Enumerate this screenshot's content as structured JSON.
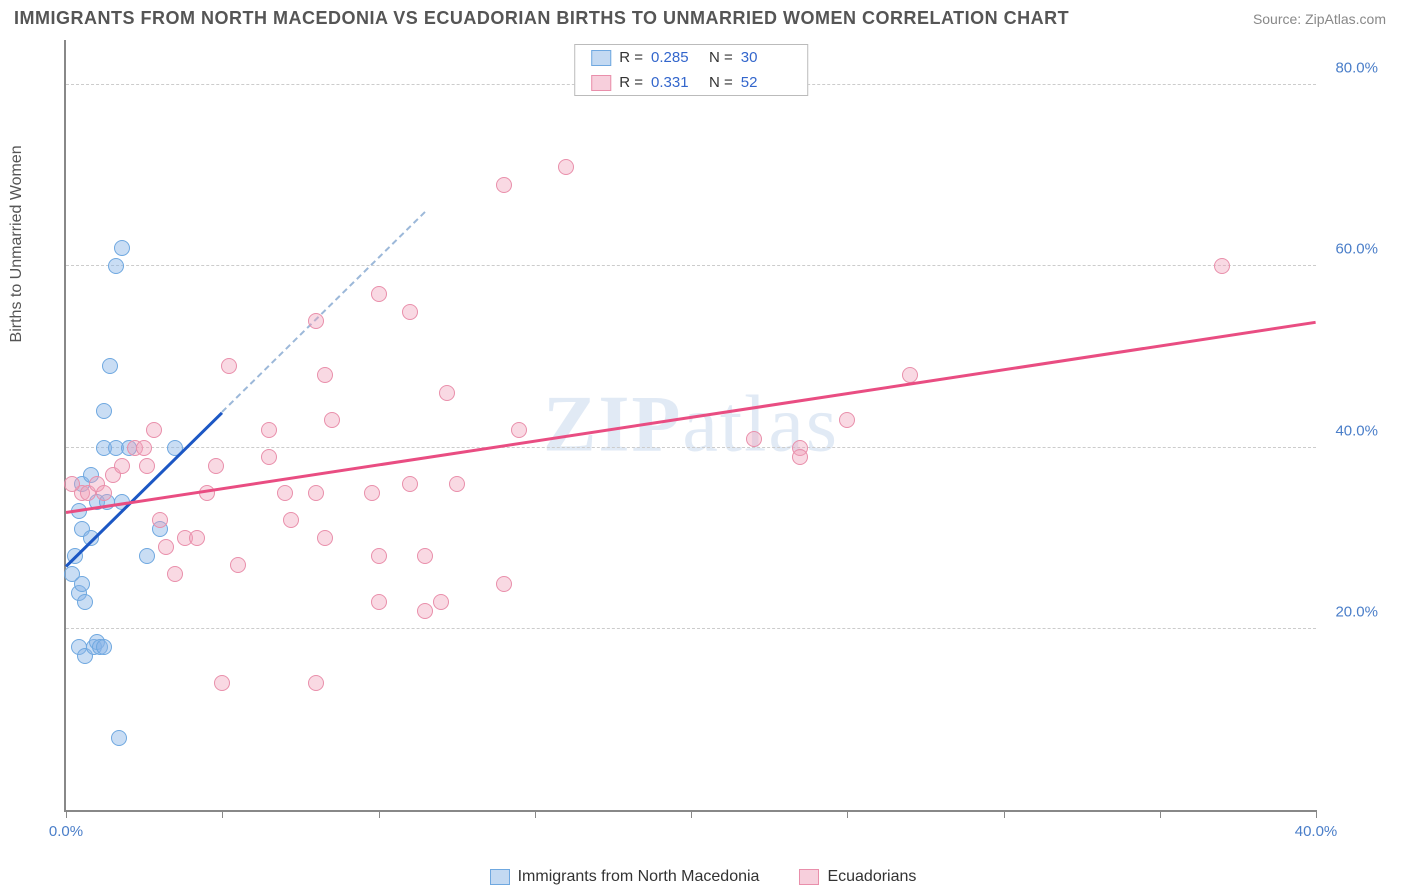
{
  "title": "IMMIGRANTS FROM NORTH MACEDONIA VS ECUADORIAN BIRTHS TO UNMARRIED WOMEN CORRELATION CHART",
  "source": "Source: ZipAtlas.com",
  "watermark": "ZIPatlas",
  "chart": {
    "type": "scatter",
    "ylabel": "Births to Unmarried Women",
    "xlim": [
      0,
      40
    ],
    "ylim": [
      0,
      85
    ],
    "xticks": [
      0,
      5,
      10,
      15,
      20,
      25,
      30,
      35,
      40
    ],
    "xtick_labels": {
      "0": "0.0%",
      "40": "40.0%"
    },
    "yticks": [
      20,
      40,
      60,
      80
    ],
    "ytick_labels": {
      "20": "20.0%",
      "40": "40.0%",
      "60": "60.0%",
      "80": "80.0%"
    },
    "grid_color": "#cccccc",
    "background_color": "#ffffff",
    "marker_radius": 8,
    "series": [
      {
        "key": "a",
        "label": "Immigrants from North Macedonia",
        "color_fill": "rgba(135,180,230,0.45)",
        "color_stroke": "#6fa8e0",
        "r": "0.285",
        "n": "30",
        "trend": {
          "x1": 0,
          "y1": 27,
          "x2": 5,
          "y2": 44,
          "color": "#1c57c4",
          "dash_extend_to_x": 11.5
        },
        "points": [
          [
            0.2,
            26
          ],
          [
            0.3,
            28
          ],
          [
            0.4,
            24
          ],
          [
            0.5,
            25
          ],
          [
            0.6,
            23
          ],
          [
            0.4,
            18
          ],
          [
            0.6,
            17
          ],
          [
            0.9,
            18
          ],
          [
            1.0,
            18.5
          ],
          [
            1.1,
            18
          ],
          [
            1.2,
            18
          ],
          [
            0.5,
            31
          ],
          [
            0.8,
            30
          ],
          [
            1.0,
            34
          ],
          [
            1.3,
            34
          ],
          [
            1.8,
            34
          ],
          [
            0.5,
            36
          ],
          [
            0.8,
            37
          ],
          [
            1.2,
            40
          ],
          [
            1.6,
            40
          ],
          [
            2.0,
            40
          ],
          [
            3.5,
            40
          ],
          [
            3.0,
            31
          ],
          [
            1.2,
            44
          ],
          [
            1.4,
            49
          ],
          [
            1.6,
            60
          ],
          [
            1.8,
            62
          ],
          [
            0.4,
            33
          ],
          [
            2.6,
            28
          ],
          [
            1.7,
            8
          ]
        ]
      },
      {
        "key": "b",
        "label": "Ecuadorians",
        "color_fill": "rgba(240,160,185,0.4)",
        "color_stroke": "#e98fab",
        "r": "0.331",
        "n": "52",
        "trend": {
          "x1": 0,
          "y1": 33,
          "x2": 40,
          "y2": 54,
          "color": "#e94d82"
        },
        "points": [
          [
            0.5,
            35
          ],
          [
            0.7,
            35
          ],
          [
            1.0,
            36
          ],
          [
            1.2,
            35
          ],
          [
            1.5,
            37
          ],
          [
            1.8,
            38
          ],
          [
            2.2,
            40
          ],
          [
            2.5,
            40
          ],
          [
            2.6,
            38
          ],
          [
            2.8,
            42
          ],
          [
            3.0,
            32
          ],
          [
            3.2,
            29
          ],
          [
            3.5,
            26
          ],
          [
            3.8,
            30
          ],
          [
            4.2,
            30
          ],
          [
            4.5,
            35
          ],
          [
            4.8,
            38
          ],
          [
            5.2,
            49
          ],
          [
            6.5,
            42
          ],
          [
            6.5,
            39
          ],
          [
            7.0,
            35
          ],
          [
            7.2,
            32
          ],
          [
            8.0,
            35
          ],
          [
            8.3,
            48
          ],
          [
            8.0,
            54
          ],
          [
            8.3,
            30
          ],
          [
            8.5,
            43
          ],
          [
            5.5,
            27
          ],
          [
            5.0,
            14
          ],
          [
            8.0,
            14
          ],
          [
            9.8,
            35
          ],
          [
            10,
            28
          ],
          [
            10,
            23
          ],
          [
            11,
            55
          ],
          [
            11,
            36
          ],
          [
            11.5,
            22
          ],
          [
            11.5,
            28
          ],
          [
            12.5,
            36
          ],
          [
            10,
            57
          ],
          [
            12,
            23
          ],
          [
            12.2,
            46
          ],
          [
            14,
            25
          ],
          [
            14,
            69
          ],
          [
            16,
            71
          ],
          [
            14.5,
            42
          ],
          [
            22,
            41
          ],
          [
            23.5,
            40
          ],
          [
            23.5,
            39
          ],
          [
            25,
            43
          ],
          [
            27,
            48
          ],
          [
            37,
            60
          ],
          [
            0.2,
            36
          ]
        ]
      }
    ]
  },
  "legend_top": [
    {
      "swatch": "a",
      "r_label": "R =",
      "r": "0.285",
      "n_label": "N =",
      "n": "30"
    },
    {
      "swatch": "b",
      "r_label": "R =",
      "r": "0.331",
      "n_label": "N =",
      "n": "52"
    }
  ],
  "legend_bottom": [
    {
      "swatch": "a",
      "label": "Immigrants from North Macedonia"
    },
    {
      "swatch": "b",
      "label": "Ecuadorians"
    }
  ]
}
